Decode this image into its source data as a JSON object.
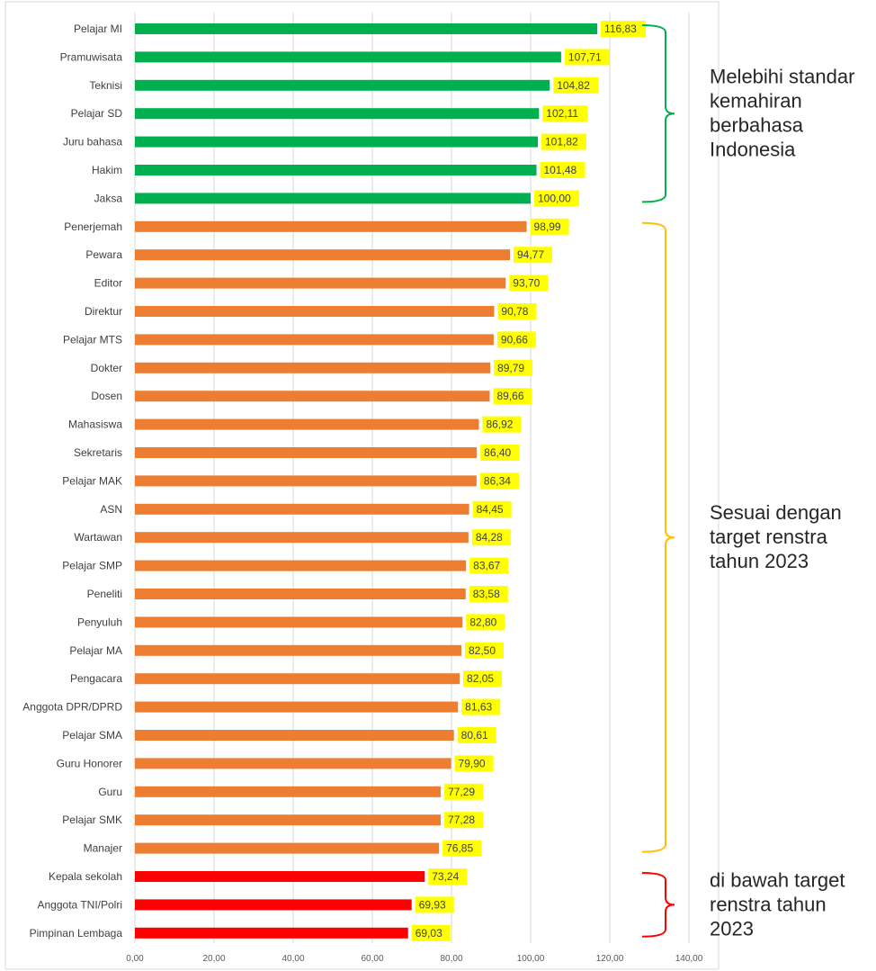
{
  "chart_data": {
    "type": "bar",
    "orientation": "horizontal",
    "categories": [
      "Pelajar MI",
      "Pramuwisata",
      "Teknisi",
      "Pelajar SD",
      "Juru bahasa",
      "Hakim",
      "Jaksa",
      "Penerjemah",
      "Pewara",
      "Editor",
      "Direktur",
      "Pelajar MTS",
      "Dokter",
      "Dosen",
      "Mahasiswa",
      "Sekretaris",
      "Pelajar MAK",
      "ASN",
      "Wartawan",
      "Pelajar SMP",
      "Peneliti",
      "Penyuluh",
      "Pelajar MA",
      "Pengacara",
      "Anggota DPR/DPRD",
      "Pelajar SMA",
      "Guru Honorer",
      "Guru",
      "Pelajar SMK",
      "Manajer",
      "Kepala sekolah",
      "Anggota TNI/Polri",
      "Pimpinan Lembaga"
    ],
    "values": [
      116.83,
      107.71,
      104.82,
      102.11,
      101.82,
      101.48,
      100.0,
      98.99,
      94.77,
      93.7,
      90.78,
      90.66,
      89.79,
      89.66,
      86.92,
      86.4,
      86.34,
      84.45,
      84.28,
      83.67,
      83.58,
      82.8,
      82.5,
      82.05,
      81.63,
      80.61,
      79.9,
      77.29,
      77.28,
      76.85,
      73.24,
      69.93,
      69.03
    ],
    "value_labels": [
      "116,83",
      "107,71",
      "104,82",
      "102,11",
      "101,82",
      "101,48",
      "100,00",
      "98,99",
      "94,77",
      "93,70",
      "90,78",
      "90,66",
      "89,79",
      "89,66",
      "86,92",
      "86,40",
      "86,34",
      "84,45",
      "84,28",
      "83,67",
      "83,58",
      "82,80",
      "82,50",
      "82,05",
      "81,63",
      "80,61",
      "79,90",
      "77,29",
      "77,28",
      "76,85",
      "73,24",
      "69,93",
      "69,03"
    ],
    "groups": [
      {
        "from": 0,
        "to": 6,
        "color": "#00b050",
        "bracket_color": "#00b050",
        "note": [
          "Melebihi standar",
          "kemahiran",
          "berbahasa",
          "Indonesia"
        ]
      },
      {
        "from": 7,
        "to": 29,
        "color": "#ed7d31",
        "bracket_color": "#ffc000",
        "note": [
          "Sesuai dengan",
          "target renstra",
          "tahun 2023"
        ]
      },
      {
        "from": 30,
        "to": 32,
        "color": "#ff0000",
        "bracket_color": "#ff0000",
        "note": [
          "di bawah target",
          "renstra tahun",
          "2023"
        ]
      }
    ],
    "xlim": [
      0,
      140
    ],
    "xticks": [
      0,
      20,
      40,
      60,
      80,
      100,
      120,
      140
    ],
    "xtick_labels": [
      "0,00",
      "20,00",
      "40,00",
      "60,00",
      "80,00",
      "100,00",
      "120,00",
      "140,00"
    ],
    "grid": true,
    "value_label_background": "#ffff00",
    "title": "",
    "xlabel": "",
    "ylabel": ""
  }
}
